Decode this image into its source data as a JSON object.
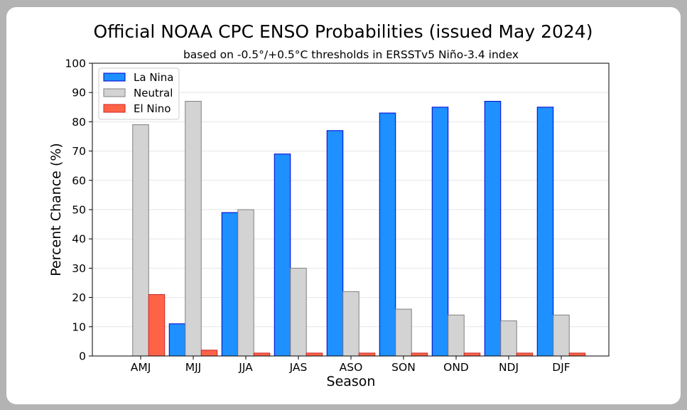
{
  "chart_data": {
    "type": "bar",
    "title": "Official NOAA CPC ENSO Probabilities (issued May 2024)",
    "subtitle": "based on -0.5°/+0.5°C thresholds in ERSSTv5 Niño-3.4 index",
    "xlabel": "Season",
    "ylabel": "Percent Chance (%)",
    "ylim": [
      0,
      100
    ],
    "yticks": [
      0,
      10,
      20,
      30,
      40,
      50,
      60,
      70,
      80,
      90,
      100
    ],
    "grid": true,
    "legend_position": "top-left",
    "categories": [
      "AMJ",
      "MJJ",
      "JJA",
      "JAS",
      "ASO",
      "SON",
      "OND",
      "NDJ",
      "DJF"
    ],
    "series": [
      {
        "name": "La Nina",
        "color": "#1e90ff",
        "edge": "#0000cd",
        "values": [
          0,
          11,
          49,
          69,
          77,
          83,
          85,
          87,
          85
        ]
      },
      {
        "name": "Neutral",
        "color": "#d3d3d3",
        "edge": "#808080",
        "values": [
          79,
          87,
          50,
          30,
          22,
          16,
          14,
          12,
          14
        ]
      },
      {
        "name": "El Nino",
        "color": "#ff6347",
        "edge": "#cd2626",
        "values": [
          21,
          2,
          1,
          1,
          1,
          1,
          1,
          1,
          1
        ]
      }
    ]
  }
}
